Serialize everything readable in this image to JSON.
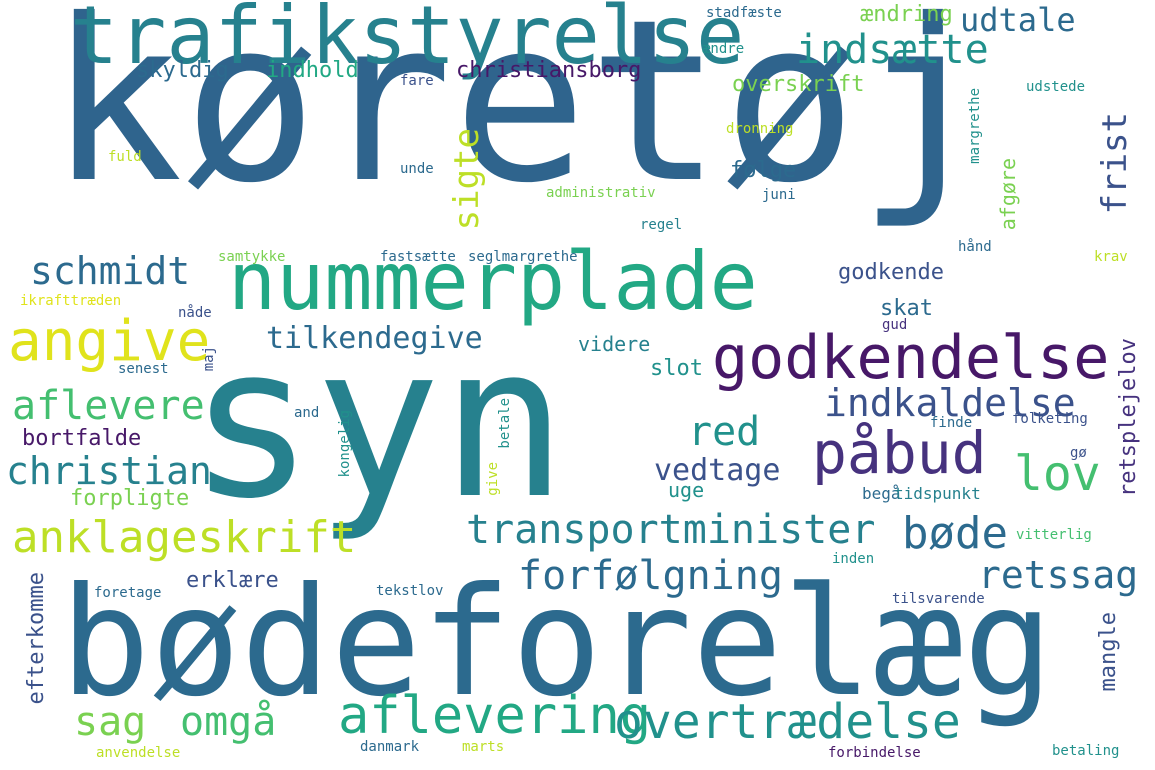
{
  "palette": {
    "background": "#ffffff",
    "dark_purple": "#471868",
    "purple": "#46327e",
    "indigo": "#3b528b",
    "steel_blue": "#2c6a8e",
    "deep_blue": "#2f648d",
    "teal_blue": "#26818e",
    "teal": "#21918c",
    "sea_green": "#22a884",
    "green": "#44bf70",
    "light_green": "#7ad151",
    "yellow_green": "#bddf26",
    "yellow": "#e0e31c"
  },
  "words": [
    {
      "id": "koretoj",
      "text": "køretøj",
      "color": "#2f648d"
    },
    {
      "id": "syn",
      "text": "syn",
      "color": "#26818e"
    },
    {
      "id": "bodeforelaeg",
      "text": "bødeforelæg",
      "color": "#2c6a8e"
    },
    {
      "id": "trafikstyrelse",
      "text": "trafikstyrelse",
      "color": "#26818e"
    },
    {
      "id": "nummerplade",
      "text": "nummerplade",
      "color": "#22a884"
    },
    {
      "id": "godkendelse",
      "text": "godkendelse",
      "color": "#471868"
    },
    {
      "id": "pabud",
      "text": "påbud",
      "color": "#46327e"
    },
    {
      "id": "angive",
      "text": "angive",
      "color": "#e0e31c"
    },
    {
      "id": "aflevering",
      "text": "aflevering",
      "color": "#22a884"
    },
    {
      "id": "overtraedelse",
      "text": "overtrædelse",
      "color": "#21918c"
    },
    {
      "id": "anklageskrift",
      "text": "anklageskrift",
      "color": "#bddf26"
    },
    {
      "id": "transportminister",
      "text": "transportminister",
      "color": "#26818e"
    },
    {
      "id": "forfolgning",
      "text": "forfølgning",
      "color": "#2c6a8e"
    },
    {
      "id": "bode",
      "text": "bøde",
      "color": "#2c6a8e"
    },
    {
      "id": "indsaette",
      "text": "indsætte",
      "color": "#21918c"
    },
    {
      "id": "schmidt",
      "text": "schmidt",
      "color": "#2c6a8e"
    },
    {
      "id": "aflevere",
      "text": "aflevere",
      "color": "#44bf70"
    },
    {
      "id": "christian",
      "text": "christian",
      "color": "#26818e"
    },
    {
      "id": "sag",
      "text": "sag",
      "color": "#7ad151"
    },
    {
      "id": "omga",
      "text": "omgå",
      "color": "#44bf70"
    },
    {
      "id": "indkaldelse",
      "text": "indkaldelse",
      "color": "#3b528b"
    },
    {
      "id": "lov",
      "text": "lov",
      "color": "#44bf70"
    },
    {
      "id": "retssag",
      "text": "retssag",
      "color": "#2c6a8e"
    },
    {
      "id": "red",
      "text": "red",
      "color": "#21918c"
    },
    {
      "id": "vedtage",
      "text": "vedtage",
      "color": "#3b528b"
    },
    {
      "id": "udtale",
      "text": "udtale",
      "color": "#2c6a8e"
    },
    {
      "id": "tilkendegive",
      "text": "tilkendegive",
      "color": "#2c6a8e"
    },
    {
      "id": "sigte",
      "text": "sigte",
      "color": "#bddf26"
    },
    {
      "id": "frist",
      "text": "frist",
      "color": "#3b528b"
    },
    {
      "id": "retsplejelov",
      "text": "retsplejelov",
      "color": "#46327e"
    },
    {
      "id": "christiansborg",
      "text": "christiansborg",
      "color": "#471868"
    },
    {
      "id": "skyldig",
      "text": "skyldig",
      "color": "#2c6a8e"
    },
    {
      "id": "indhold",
      "text": "indhold",
      "color": "#22a884"
    },
    {
      "id": "overskrift",
      "text": "overskrift",
      "color": "#7ad151"
    },
    {
      "id": "aendring",
      "text": "ændring",
      "color": "#7ad151"
    },
    {
      "id": "folge",
      "text": "følge",
      "color": "#2c6a8e"
    },
    {
      "id": "afgore",
      "text": "afgøre",
      "color": "#7ad151"
    },
    {
      "id": "godkende",
      "text": "godkende",
      "color": "#3b528b"
    },
    {
      "id": "skat",
      "text": "skat",
      "color": "#2c6a8e"
    },
    {
      "id": "videre",
      "text": "videre",
      "color": "#26818e"
    },
    {
      "id": "slot",
      "text": "slot",
      "color": "#21918c"
    },
    {
      "id": "bortfalde",
      "text": "bortfalde",
      "color": "#471868"
    },
    {
      "id": "forpligte",
      "text": "forpligte",
      "color": "#7ad151"
    },
    {
      "id": "erklaere",
      "text": "erklære",
      "color": "#3b528b"
    },
    {
      "id": "efterkomme",
      "text": "efterkomme",
      "color": "#3b528b"
    },
    {
      "id": "mangle",
      "text": "mangle",
      "color": "#3b528b"
    },
    {
      "id": "uge",
      "text": "uge",
      "color": "#21918c"
    },
    {
      "id": "bega",
      "text": "begå",
      "color": "#2c6a8e"
    },
    {
      "id": "tidspunkt",
      "text": "tidspunkt",
      "color": "#26818e"
    },
    {
      "id": "stadfaeste",
      "text": "stadfæste",
      "color": "#2c6a8e"
    },
    {
      "id": "aendre",
      "text": "ændre",
      "color": "#21918c"
    },
    {
      "id": "fare",
      "text": "fare",
      "color": "#3b528b"
    },
    {
      "id": "udstede",
      "text": "udstede",
      "color": "#21918c"
    },
    {
      "id": "dronning",
      "text": "dronning",
      "color": "#bddf26"
    },
    {
      "id": "margrethe",
      "text": "margrethe",
      "color": "#21918c"
    },
    {
      "id": "fuld",
      "text": "fuld",
      "color": "#bddf26"
    },
    {
      "id": "unde",
      "text": "unde",
      "color": "#2c6a8e"
    },
    {
      "id": "administrativ",
      "text": "administrativ",
      "color": "#7ad151"
    },
    {
      "id": "juni",
      "text": "juni",
      "color": "#2c6a8e"
    },
    {
      "id": "regel",
      "text": "regel",
      "color": "#26818e"
    },
    {
      "id": "samtykke",
      "text": "samtykke",
      "color": "#7ad151"
    },
    {
      "id": "fastsaette",
      "text": "fastsætte",
      "color": "#2c6a8e"
    },
    {
      "id": "seglmargrethe",
      "text": "seglmargrethe",
      "color": "#2c6a8e"
    },
    {
      "id": "hand",
      "text": "hånd",
      "color": "#2c6a8e"
    },
    {
      "id": "krav",
      "text": "krav",
      "color": "#bddf26"
    },
    {
      "id": "ikrafttraeden",
      "text": "ikrafttræden",
      "color": "#e0e31c"
    },
    {
      "id": "nade",
      "text": "nåde",
      "color": "#3b528b"
    },
    {
      "id": "gud",
      "text": "gud",
      "color": "#46327e"
    },
    {
      "id": "senest",
      "text": "senest",
      "color": "#2c6a8e"
    },
    {
      "id": "maj",
      "text": "maj",
      "color": "#3b528b"
    },
    {
      "id": "and",
      "text": "and",
      "color": "#2c6a8e"
    },
    {
      "id": "kongelig",
      "text": "kongelig",
      "color": "#21918c"
    },
    {
      "id": "betale",
      "text": "betale",
      "color": "#21918c"
    },
    {
      "id": "give",
      "text": "give",
      "color": "#bddf26"
    },
    {
      "id": "finde",
      "text": "finde",
      "color": "#2c6a8e"
    },
    {
      "id": "folketing",
      "text": "folketing",
      "color": "#3b528b"
    },
    {
      "id": "go",
      "text": "gø",
      "color": "#3b528b"
    },
    {
      "id": "vitterlig",
      "text": "vitterlig",
      "color": "#44bf70"
    },
    {
      "id": "inden",
      "text": "inden",
      "color": "#21918c"
    },
    {
      "id": "foretage",
      "text": "foretage",
      "color": "#2c6a8e"
    },
    {
      "id": "tekstlov",
      "text": "tekstlov",
      "color": "#2c6a8e"
    },
    {
      "id": "tilsvarende",
      "text": "tilsvarende",
      "color": "#3b528b"
    },
    {
      "id": "anvendelse",
      "text": "anvendelse",
      "color": "#bddf26"
    },
    {
      "id": "danmark",
      "text": "danmark",
      "color": "#2c6a8e"
    },
    {
      "id": "marts",
      "text": "marts",
      "color": "#bddf26"
    },
    {
      "id": "forbindelse",
      "text": "forbindelse",
      "color": "#471868"
    },
    {
      "id": "betaling",
      "text": "betaling",
      "color": "#21918c"
    }
  ]
}
